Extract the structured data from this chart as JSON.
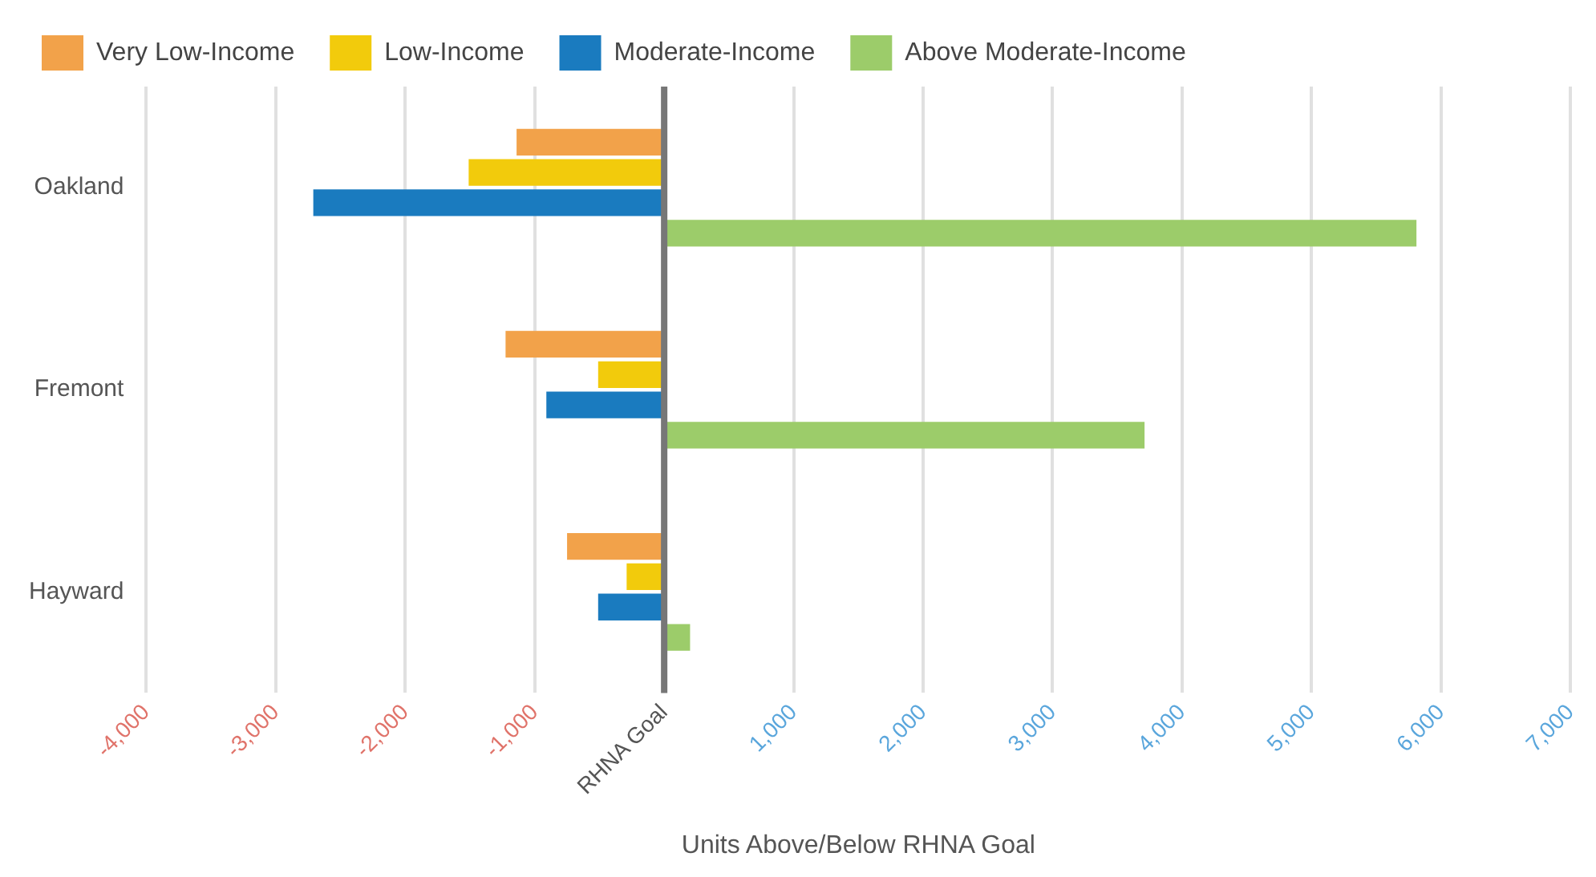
{
  "chart_data": {
    "type": "bar",
    "orientation": "horizontal",
    "xlabel": "Units Above/Below RHNA Goal",
    "categories": [
      "Oakland",
      "Fremont",
      "Hayward"
    ],
    "series": [
      {
        "name": "Very Low-Income",
        "color": "#f2a24a",
        "values": [
          -1140,
          -1225,
          -750
        ]
      },
      {
        "name": "Low-Income",
        "color": "#f2cb0c",
        "values": [
          -1510,
          -510,
          -290
        ]
      },
      {
        "name": "Moderate-Income",
        "color": "#1a7bbf",
        "values": [
          -2710,
          -910,
          -510
        ]
      },
      {
        "name": "Above Moderate-Income",
        "color": "#9ccc6a",
        "values": [
          5810,
          3710,
          200
        ]
      }
    ],
    "xlim": [
      -4000,
      7000
    ],
    "xticks": [
      {
        "value": -4000,
        "label": "-4,000"
      },
      {
        "value": -3000,
        "label": "-3,000"
      },
      {
        "value": -2000,
        "label": "-2,000"
      },
      {
        "value": -1000,
        "label": "-1,000"
      },
      {
        "value": 0,
        "label": "RHNA Goal"
      },
      {
        "value": 1000,
        "label": "1,000"
      },
      {
        "value": 2000,
        "label": "2,000"
      },
      {
        "value": 3000,
        "label": "3,000"
      },
      {
        "value": 4000,
        "label": "4,000"
      },
      {
        "value": 5000,
        "label": "5,000"
      },
      {
        "value": 6000,
        "label": "6,000"
      },
      {
        "value": 7000,
        "label": "7,000"
      }
    ],
    "ref_lines": [
      {
        "axis": "x",
        "value": 0,
        "color": "#777777"
      }
    ],
    "grid": "x",
    "legend": "top left"
  }
}
